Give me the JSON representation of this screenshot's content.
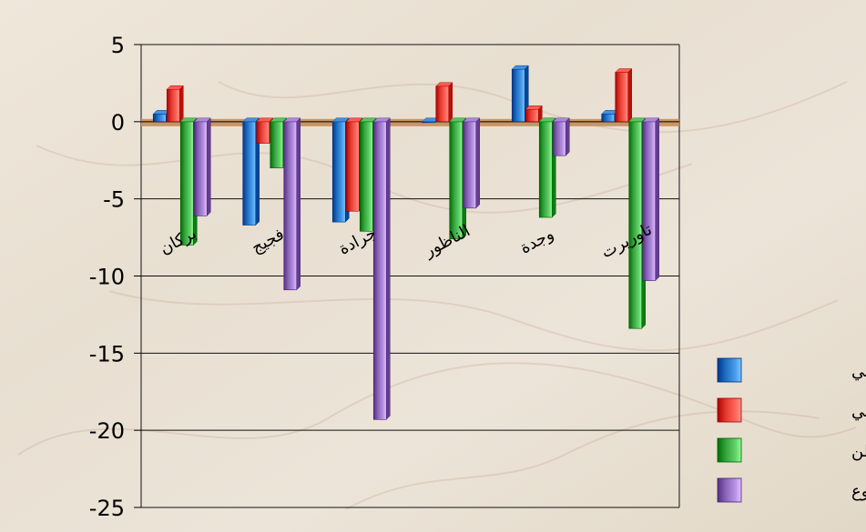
{
  "chart_data": {
    "type": "bar",
    "categories": [
      "بركان",
      "فجيج",
      "جرادة",
      "الناظور",
      "وجدة",
      "تاوريرت"
    ],
    "series": [
      {
        "name": "داخلي",
        "color": "#1f6fc1",
        "values": [
          0.5,
          -6.7,
          -6.5,
          0.0,
          3.4,
          0.5
        ]
      },
      {
        "name": "خارجي",
        "color": "#e23a2f",
        "values": [
          2.1,
          -1.4,
          -5.8,
          2.3,
          0.8,
          3.2
        ]
      },
      {
        "name": "خارج الوطن",
        "color": "#36a43c",
        "values": [
          -8.0,
          -3.0,
          -7.1,
          -7.6,
          -6.2,
          -13.4
        ]
      },
      {
        "name": "مجموع",
        "color": "#8b66b8",
        "values": [
          -6.1,
          -10.9,
          -19.3,
          -5.6,
          -2.2,
          -10.3
        ]
      }
    ],
    "ylim": [
      -25,
      5
    ],
    "yticks": [
      5,
      0,
      -5,
      -10,
      -15,
      -20,
      -25
    ],
    "grid": true,
    "legend": "right",
    "zero_band_color": "#c6915f",
    "background_color": "#e9e2d4"
  }
}
